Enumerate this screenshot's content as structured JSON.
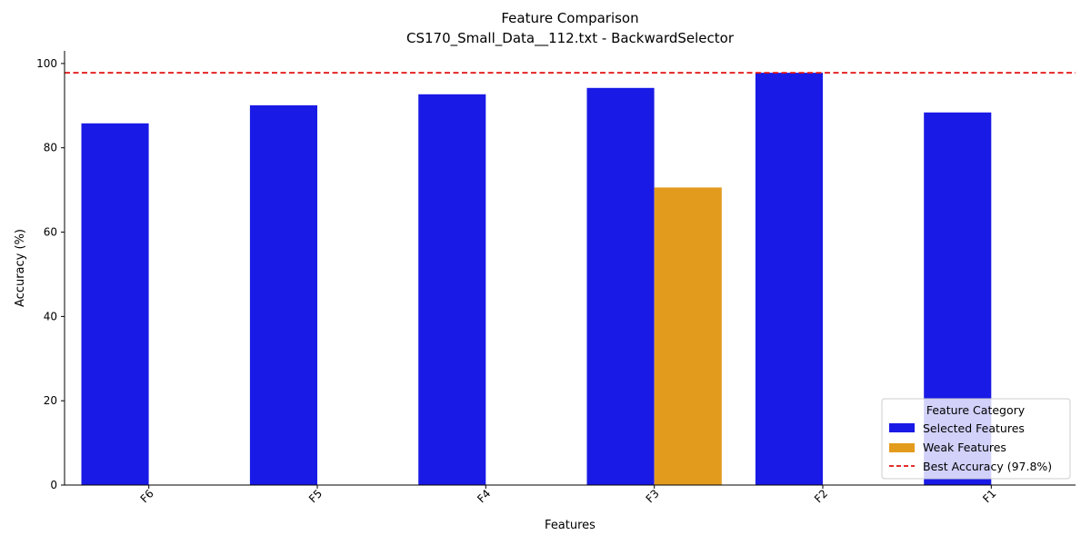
{
  "chart_data": {
    "type": "bar",
    "title": "Feature Comparison",
    "subtitle": "CS170_Small_Data__112.txt - BackwardSelector",
    "xlabel": "Features",
    "ylabel": "Accuracy (%)",
    "categories": [
      "F6",
      "F5",
      "F4",
      "F3",
      "F2",
      "F1"
    ],
    "ylim": [
      0,
      103
    ],
    "yticks": [
      0,
      20,
      40,
      60,
      80,
      100
    ],
    "series": [
      {
        "name": "Selected Features",
        "color": "#1a1ae6",
        "values": [
          85.8,
          90.1,
          92.7,
          94.2,
          97.8,
          88.4
        ]
      },
      {
        "name": "Weak Features",
        "color": "#e39b1e",
        "values": [
          null,
          null,
          null,
          70.6,
          null,
          null
        ]
      }
    ],
    "reference_line": {
      "label": "Best Accuracy (97.8%)",
      "value": 97.8,
      "color": "#e01010",
      "style": "dashed"
    },
    "legend": {
      "title": "Feature Category",
      "placement": "lower-right"
    },
    "grid": false
  }
}
